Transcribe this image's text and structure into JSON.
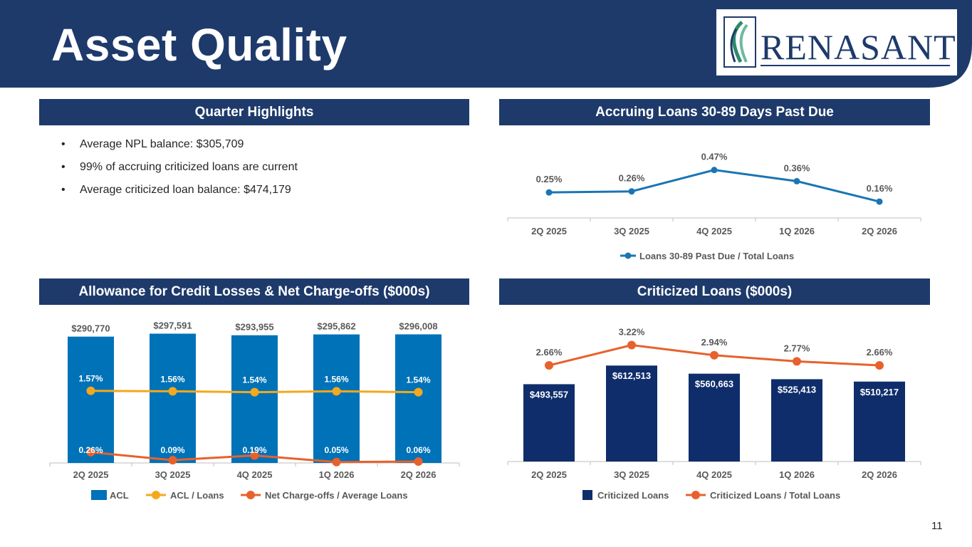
{
  "header": {
    "title": "Asset Quality",
    "logo_text": "RENASANT"
  },
  "colors": {
    "navy": "#1e3a6b",
    "acl_bar": "#0072b8",
    "criticized_bar": "#0f2d6b",
    "line_blue": "#1a75b4",
    "line_gold": "#f4a81d",
    "line_orange": "#e8612c",
    "logo_green": "#2e8a6c"
  },
  "sections": {
    "highlights": "Quarter Highlights",
    "past_due": "Accruing Loans 30-89 Days Past Due",
    "acl": "Allowance for Credit Losses & Net Charge-offs ($000s)",
    "criticized": "Criticized Loans ($000s)"
  },
  "highlights": [
    "Average NPL balance: $305,709",
    "99% of accruing criticized loans are current",
    "Average criticized loan balance: $474,179"
  ],
  "page_number": "11",
  "chart_data": [
    {
      "id": "past_due",
      "type": "line",
      "categories": [
        "2Q 2025",
        "3Q 2025",
        "4Q 2025",
        "1Q 2026",
        "2Q 2026"
      ],
      "series": [
        {
          "name": "Loans 30-89 Past Due / Total Loans",
          "values": [
            0.25,
            0.26,
            0.47,
            0.36,
            0.16
          ],
          "labels": [
            "0.25%",
            "0.26%",
            "0.47%",
            "0.36%",
            "0.16%"
          ],
          "color": "#1a75b4"
        }
      ],
      "legend_position": "bottom",
      "grid": false
    },
    {
      "id": "acl",
      "type": "bar",
      "categories": [
        "2Q 2025",
        "3Q 2025",
        "4Q 2025",
        "1Q 2026",
        "2Q 2026"
      ],
      "bars": {
        "name": "ACL",
        "values": [
          290770,
          297591,
          293955,
          295862,
          296008
        ],
        "labels": [
          "$290,770",
          "$297,591",
          "$293,955",
          "$295,862",
          "$296,008"
        ],
        "color": "#0072b8"
      },
      "series": [
        {
          "name": "ACL / Loans",
          "values": [
            1.57,
            1.56,
            1.54,
            1.56,
            1.54
          ],
          "labels": [
            "1.57%",
            "1.56%",
            "1.54%",
            "1.56%",
            "1.54%"
          ],
          "color": "#f4a81d"
        },
        {
          "name": "Net Charge-offs / Average Loans",
          "values": [
            0.26,
            0.09,
            0.19,
            0.05,
            0.06
          ],
          "labels": [
            "0.26%",
            "0.09%",
            "0.19%",
            "0.05%",
            "0.06%"
          ],
          "color": "#e8612c"
        }
      ],
      "legend_position": "bottom",
      "grid": false
    },
    {
      "id": "criticized",
      "type": "bar",
      "categories": [
        "2Q 2025",
        "3Q 2025",
        "4Q 2025",
        "1Q 2026",
        "2Q 2026"
      ],
      "bars": {
        "name": "Criticized Loans",
        "values": [
          493557,
          612513,
          560663,
          525413,
          510217
        ],
        "labels": [
          "$493,557",
          "$612,513",
          "$560,663",
          "$525,413",
          "$510,217"
        ],
        "color": "#0f2d6b"
      },
      "series": [
        {
          "name": "Criticized Loans / Total Loans",
          "values": [
            2.66,
            3.22,
            2.94,
            2.77,
            2.66
          ],
          "labels": [
            "2.66%",
            "3.22%",
            "2.94%",
            "2.77%",
            "2.66%"
          ],
          "color": "#e8612c"
        }
      ],
      "legend_position": "bottom",
      "grid": false
    }
  ]
}
